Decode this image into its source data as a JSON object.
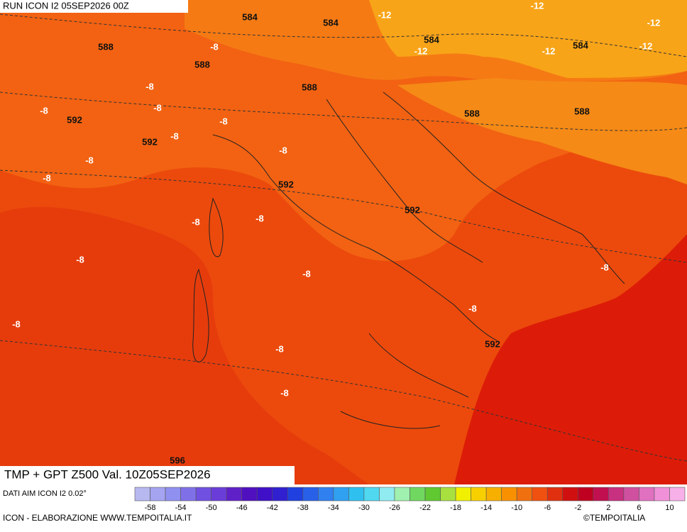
{
  "header": {
    "run": "RUN ICON I2 05SEP2026 00Z",
    "title": "TMP + GPT Z500 Val. 10Z05SEP2026",
    "source": "DATI AIM ICON I2 0.02°",
    "footer": "ICON - ELABORAZIONE WWW.TEMPOITALIA.IT",
    "brand": "©TEMPOITALIA"
  },
  "map": {
    "labels": [
      "584",
      "584",
      "-12",
      "-12",
      "-12",
      "588",
      "-8",
      "584",
      "-12",
      "-12",
      "584",
      "-12",
      "588",
      "-8",
      "588",
      "-8",
      "592",
      "-8",
      "-8",
      "588",
      "588",
      "592",
      "-8",
      "-8",
      "-8",
      "-8",
      "592",
      "592",
      "-8",
      "-8",
      "-8",
      "-8",
      "-8",
      "-8",
      "-8",
      "592",
      "-8",
      "-8",
      "596"
    ]
  },
  "legend": {
    "ticks": [
      -58,
      -54,
      -50,
      -46,
      -42,
      -38,
      -34,
      -30,
      -26,
      -22,
      -18,
      -14,
      -10,
      -6,
      -2,
      2,
      6,
      10
    ],
    "colors": [
      "#b8b8f0",
      "#a4a4f0",
      "#9090f0",
      "#8070e8",
      "#7050e0",
      "#6a3cd8",
      "#6020c8",
      "#5010c0",
      "#4010c8",
      "#3020d0",
      "#2040e0",
      "#2860e8",
      "#3080f0",
      "#30a0f0",
      "#30c0f0",
      "#50d8f0",
      "#90ecf0",
      "#a0f0b0",
      "#70d860",
      "#60c830",
      "#a8e040",
      "#f0f000",
      "#f8d000",
      "#f8b000",
      "#f89000",
      "#f07010",
      "#f05010",
      "#e03010",
      "#d01010",
      "#c00020",
      "#c01050",
      "#c83080",
      "#d050a0",
      "#e070c0",
      "#f090d8",
      "#f8b0e8"
    ]
  }
}
